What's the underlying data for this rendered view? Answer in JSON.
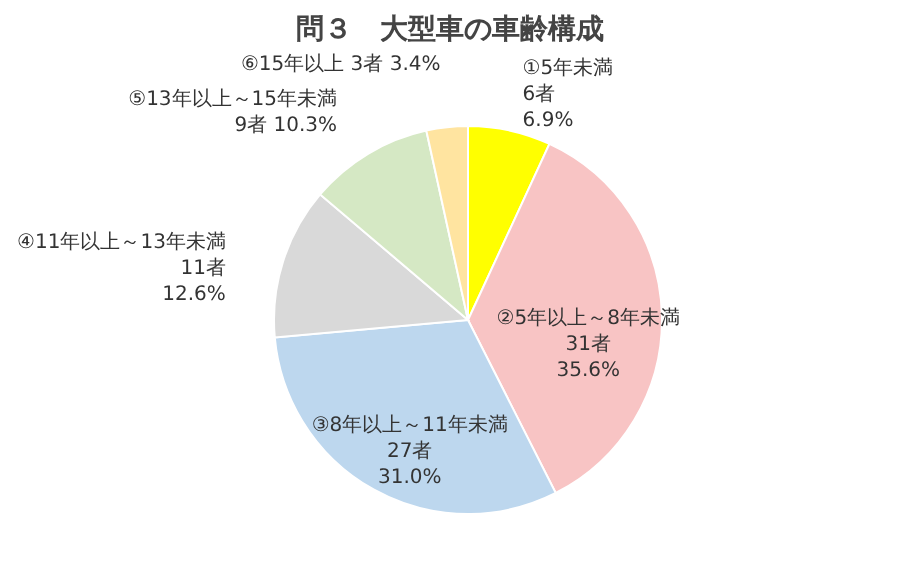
{
  "chart_data": {
    "type": "pie",
    "title": "問３　大型車の車齢構成",
    "categories": [
      "①5年未満",
      "②5年以上～8年未満",
      "③8年以上～11年未満",
      "④11年以上～13年未満",
      "⑤13年以上～15年未満",
      "⑥15年以上"
    ],
    "values": [
      6,
      31,
      27,
      11,
      9,
      3
    ],
    "value_labels": [
      "6者\n6.9%",
      "31者\n35.6%",
      "27者\n31.0%",
      "11者\n12.6%",
      "9者 10.3%",
      "3者 3.4%"
    ],
    "colors": [
      "#ffff00",
      "#f8c4c4",
      "#bdd7ee",
      "#d9d9d9",
      "#d5e8c4",
      "#ffe4a0"
    ]
  }
}
